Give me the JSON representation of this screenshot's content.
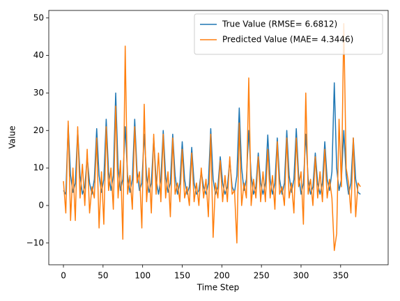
{
  "chart_data": {
    "type": "line",
    "xlabel": "Time Step",
    "ylabel": "Value",
    "x": [
      0,
      3,
      6,
      9,
      12,
      15,
      18,
      21,
      24,
      27,
      30,
      33,
      36,
      39,
      42,
      45,
      48,
      51,
      54,
      57,
      60,
      63,
      66,
      69,
      72,
      75,
      78,
      81,
      84,
      87,
      90,
      93,
      96,
      99,
      102,
      105,
      108,
      111,
      114,
      117,
      120,
      123,
      126,
      129,
      132,
      135,
      138,
      141,
      144,
      147,
      150,
      153,
      156,
      159,
      162,
      165,
      168,
      171,
      174,
      177,
      180,
      183,
      186,
      189,
      192,
      195,
      198,
      201,
      204,
      207,
      210,
      213,
      216,
      219,
      222,
      225,
      228,
      231,
      234,
      237,
      240,
      243,
      246,
      249,
      252,
      255,
      258,
      261,
      264,
      267,
      270,
      273,
      276,
      279,
      282,
      285,
      288,
      291,
      294,
      297,
      300,
      303,
      306,
      309,
      312,
      315,
      318,
      321,
      324,
      327,
      330,
      333,
      336,
      339,
      342,
      345,
      348,
      351,
      354,
      357,
      360,
      363,
      366,
      369,
      372,
      375
    ],
    "series": [
      {
        "name": "True Value (RMSE= 6.6812)",
        "color": "#1f77b4",
        "values": [
          4,
          3,
          21.5,
          8,
          3.5,
          6,
          20,
          8,
          3,
          5,
          13,
          6,
          3,
          7,
          20.5,
          8,
          3.5,
          7,
          23,
          9,
          4,
          8,
          30,
          10,
          4,
          7,
          21,
          8,
          3.5,
          7,
          23,
          9,
          4,
          6,
          19,
          8,
          3.5,
          6,
          18,
          7,
          3,
          7,
          20,
          8,
          3.5,
          6,
          19,
          8,
          3,
          6,
          17,
          7,
          3,
          5,
          15.5,
          6,
          3,
          4,
          9,
          5,
          3,
          6,
          20.5,
          7,
          3,
          5,
          13,
          6,
          3,
          5,
          12,
          5,
          3.5,
          8,
          26,
          10,
          4,
          7,
          20,
          8,
          3,
          5,
          14,
          6,
          3,
          6,
          18.8,
          7,
          3,
          6,
          18,
          7,
          3,
          6,
          20,
          8,
          3.5,
          7,
          20.5,
          8,
          3,
          6,
          19,
          7,
          3,
          5,
          14,
          6,
          3,
          6,
          17,
          7,
          4,
          9,
          32.7,
          10,
          4,
          7,
          20,
          8,
          3,
          6,
          18,
          7,
          3.5,
          3
        ]
      },
      {
        "name": "Predicted Value (MAE= 4.3446)",
        "color": "#ff7f0e",
        "values": [
          6.5,
          -2,
          22.5,
          -4,
          10,
          -4,
          21,
          2,
          11,
          0,
          15,
          -2,
          5,
          2,
          18,
          -6,
          9,
          -5,
          21,
          4,
          10,
          -1,
          26.5,
          2,
          12,
          -9,
          42.5,
          3,
          8,
          -1,
          21,
          6,
          9,
          -6,
          27,
          1,
          10,
          -2,
          19,
          3,
          14,
          1,
          19,
          2,
          9,
          -3,
          18,
          3,
          6,
          1,
          15,
          2,
          5,
          0,
          14,
          1,
          6,
          0,
          10,
          2,
          7,
          -3,
          19,
          -8.5,
          6,
          2,
          12,
          1,
          8,
          1,
          13,
          3,
          4,
          -10,
          22,
          0,
          6,
          2,
          34,
          0,
          7,
          2,
          13,
          1,
          9,
          1,
          15,
          2,
          8,
          -1,
          17,
          3,
          5,
          0,
          18,
          2,
          6,
          -2,
          18,
          5,
          9,
          -5,
          30,
          3,
          7,
          0,
          13,
          2,
          9,
          1,
          15,
          2,
          7,
          2,
          -12,
          -7.5,
          23,
          5,
          48.5,
          10,
          6,
          -2,
          18,
          -3,
          6,
          5
        ]
      }
    ],
    "xlim": [
      -18.5,
      410
    ],
    "xticks": [
      0,
      50,
      100,
      150,
      200,
      250,
      300,
      350
    ],
    "ylim": [
      -15.8,
      52
    ],
    "yticks": [
      {
        "value": -10,
        "label": "−10"
      },
      0,
      10,
      20,
      30,
      40,
      50
    ],
    "legend": "upper right"
  }
}
